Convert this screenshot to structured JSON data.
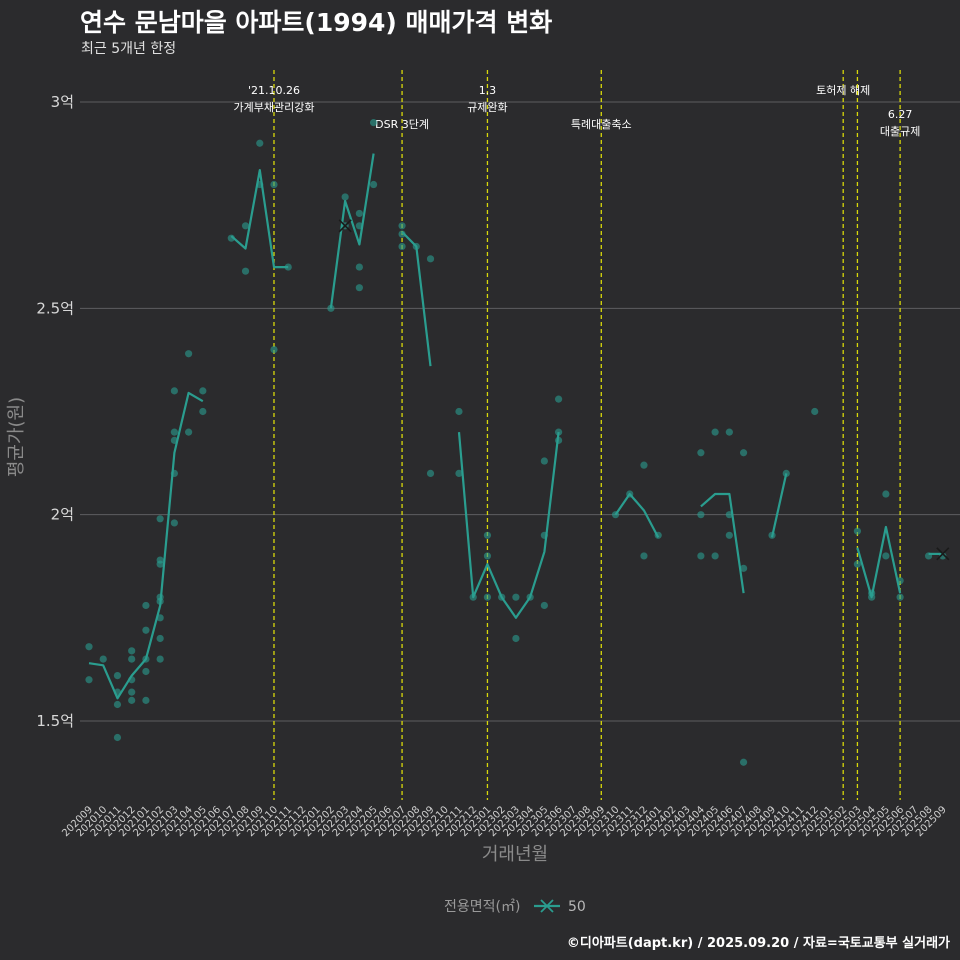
{
  "title": "연수 문남마을 아파트(1994) 매매가격 변화",
  "subtitle": "최근 5개년 한정",
  "caption": "©디아파트(dapt.kr) / 2025.09.20 / 자료=국토교통부 실거래가",
  "colors": {
    "background": "#2b2b2d",
    "series": "#2a9d8f",
    "event_line": "#d8d80a",
    "grid": "#5e5e60"
  },
  "chart_data": {
    "type": "line+scatter",
    "title": "연수 문남마을 아파트(1994) 매매가격 변화",
    "xlabel": "거래년월",
    "ylabel": "평균가(원)",
    "ylim": [
      1.33,
      3.08
    ],
    "yticks": [
      {
        "value": 1.5,
        "label": "1.5억"
      },
      {
        "value": 2.0,
        "label": "2억"
      },
      {
        "value": 2.5,
        "label": "2.5억"
      },
      {
        "value": 3.0,
        "label": "3억"
      }
    ],
    "categories": [
      "202009",
      "202010",
      "202011",
      "202012",
      "202101",
      "202102",
      "202103",
      "202104",
      "202105",
      "202106",
      "202107",
      "202108",
      "202109",
      "202110",
      "202111",
      "202112",
      "202201",
      "202202",
      "202203",
      "202204",
      "202205",
      "202206",
      "202207",
      "202208",
      "202209",
      "202210",
      "202211",
      "202212",
      "202301",
      "202302",
      "202303",
      "202304",
      "202305",
      "202306",
      "202307",
      "202308",
      "202309",
      "202310",
      "202311",
      "202312",
      "202401",
      "202402",
      "202403",
      "202404",
      "202405",
      "202406",
      "202407",
      "202408",
      "202409",
      "202410",
      "202411",
      "202412",
      "202501",
      "202502",
      "202503",
      "202504",
      "202505",
      "202506",
      "202507",
      "202508",
      "202509"
    ],
    "legend": {
      "title": "전용면적(㎡)",
      "entries": [
        "50"
      ]
    },
    "events": [
      {
        "at": 13,
        "label": [
          "'21.10.26",
          "가계부채관리강화"
        ],
        "row": 0
      },
      {
        "at": 22,
        "label": [
          "DSR 3단계"
        ],
        "row": 1
      },
      {
        "at": 28,
        "label": [
          "1.3",
          "규제완화"
        ],
        "row": 0
      },
      {
        "at": 36,
        "label": [
          "특례대출축소"
        ],
        "row": 1
      },
      {
        "at": 53,
        "label": [
          "토허제 해제"
        ],
        "row": 0
      },
      {
        "at": 54,
        "label": [],
        "row": 0
      },
      {
        "at": 57,
        "label": [
          "6.27",
          "대출규제"
        ],
        "row": 1
      }
    ],
    "series": [
      {
        "name": "50",
        "mean_segments": [
          [
            [
              0,
              1.64
            ],
            [
              1,
              1.635
            ],
            [
              2,
              1.555
            ],
            [
              3,
              1.61
            ],
            [
              4,
              1.65
            ],
            [
              5,
              1.78
            ],
            [
              6,
              2.15
            ],
            [
              7,
              2.295
            ],
            [
              8,
              2.275
            ]
          ],
          [
            [
              10,
              2.675
            ],
            [
              11,
              2.645
            ],
            [
              12,
              2.835
            ],
            [
              13,
              2.6
            ],
            [
              14,
              2.6
            ]
          ],
          [
            [
              17,
              2.5
            ],
            [
              18,
              2.76
            ],
            [
              19,
              2.655
            ],
            [
              20,
              2.875
            ]
          ],
          [
            [
              22,
              2.685
            ],
            [
              23,
              2.65
            ],
            [
              24,
              2.36
            ]
          ],
          [
            [
              26,
              2.2
            ],
            [
              27,
              1.8
            ],
            [
              28,
              1.88
            ],
            [
              29,
              1.8
            ],
            [
              30,
              1.75
            ],
            [
              31,
              1.8
            ],
            [
              32,
              1.91
            ],
            [
              33,
              2.2
            ]
          ],
          [
            [
              37,
              2.0
            ],
            [
              38,
              2.05
            ],
            [
              39,
              2.01
            ],
            [
              40,
              1.945
            ]
          ],
          [
            [
              43,
              2.02
            ],
            [
              44,
              2.05
            ],
            [
              45,
              2.05
            ],
            [
              46,
              1.81
            ]
          ],
          [
            [
              48,
              1.945
            ],
            [
              49,
              2.1
            ]
          ],
          [
            [
              54,
              1.92
            ],
            [
              55,
              1.8
            ],
            [
              56,
              1.97
            ],
            [
              57,
              1.81
            ]
          ],
          [
            [
              59,
              1.905
            ],
            [
              60,
              1.905
            ]
          ]
        ],
        "points": [
          [
            0,
            1.68
          ],
          [
            0,
            1.6
          ],
          [
            1,
            1.65
          ],
          [
            2,
            1.57
          ],
          [
            2,
            1.54
          ],
          [
            2,
            1.46
          ],
          [
            2,
            1.61
          ],
          [
            3,
            1.67
          ],
          [
            3,
            1.65
          ],
          [
            3,
            1.6
          ],
          [
            3,
            1.57
          ],
          [
            3,
            1.55
          ],
          [
            4,
            1.78
          ],
          [
            4,
            1.72
          ],
          [
            4,
            1.65
          ],
          [
            4,
            1.62
          ],
          [
            4,
            1.55
          ],
          [
            5,
            1.99
          ],
          [
            5,
            1.89
          ],
          [
            5,
            1.88
          ],
          [
            5,
            1.8
          ],
          [
            5,
            1.79
          ],
          [
            5,
            1.75
          ],
          [
            5,
            1.7
          ],
          [
            5,
            1.65
          ],
          [
            6,
            2.3
          ],
          [
            6,
            2.2
          ],
          [
            6,
            2.18
          ],
          [
            6,
            2.1
          ],
          [
            6,
            1.98
          ],
          [
            7,
            2.39
          ],
          [
            7,
            2.2
          ],
          [
            8,
            2.3
          ],
          [
            8,
            2.25
          ],
          [
            10,
            2.67
          ],
          [
            11,
            2.7
          ],
          [
            11,
            2.59
          ],
          [
            12,
            2.9
          ],
          [
            12,
            2.8
          ],
          [
            13,
            2.8
          ],
          [
            13,
            2.4
          ],
          [
            14,
            2.6
          ],
          [
            17,
            2.5
          ],
          [
            18,
            2.77
          ],
          [
            18,
            2.7
          ],
          [
            19,
            2.73
          ],
          [
            19,
            2.7
          ],
          [
            19,
            2.6
          ],
          [
            19,
            2.55
          ],
          [
            20,
            2.95
          ],
          [
            20,
            2.8
          ],
          [
            22,
            2.7
          ],
          [
            22,
            2.68
          ],
          [
            22,
            2.65
          ],
          [
            23,
            2.65
          ],
          [
            24,
            2.62
          ],
          [
            24,
            2.1
          ],
          [
            26,
            2.25
          ],
          [
            26,
            2.1
          ],
          [
            27,
            1.8
          ],
          [
            28,
            1.95
          ],
          [
            28,
            1.9
          ],
          [
            28,
            1.8
          ],
          [
            29,
            1.8
          ],
          [
            30,
            1.8
          ],
          [
            30,
            1.7
          ],
          [
            31,
            1.8
          ],
          [
            32,
            2.13
          ],
          [
            32,
            1.95
          ],
          [
            32,
            1.78
          ],
          [
            33,
            2.28
          ],
          [
            33,
            2.2
          ],
          [
            33,
            2.18
          ],
          [
            37,
            2.0
          ],
          [
            38,
            2.05
          ],
          [
            39,
            2.12
          ],
          [
            39,
            1.9
          ],
          [
            40,
            1.95
          ],
          [
            43,
            2.15
          ],
          [
            43,
            2.0
          ],
          [
            43,
            1.9
          ],
          [
            44,
            2.2
          ],
          [
            44,
            1.9
          ],
          [
            45,
            2.2
          ],
          [
            45,
            2.0
          ],
          [
            45,
            1.95
          ],
          [
            46,
            2.15
          ],
          [
            46,
            1.87
          ],
          [
            46,
            1.4
          ],
          [
            48,
            1.95
          ],
          [
            49,
            2.1
          ],
          [
            51,
            2.25
          ],
          [
            54,
            1.96
          ],
          [
            54,
            1.88
          ],
          [
            55,
            1.81
          ],
          [
            55,
            1.8
          ],
          [
            56,
            2.05
          ],
          [
            56,
            1.9
          ],
          [
            57,
            1.84
          ],
          [
            57,
            1.8
          ],
          [
            59,
            1.9
          ],
          [
            60,
            1.9
          ]
        ],
        "cross_markers": [
          [
            18,
            2.7
          ],
          [
            60,
            1.905
          ]
        ]
      }
    ]
  }
}
